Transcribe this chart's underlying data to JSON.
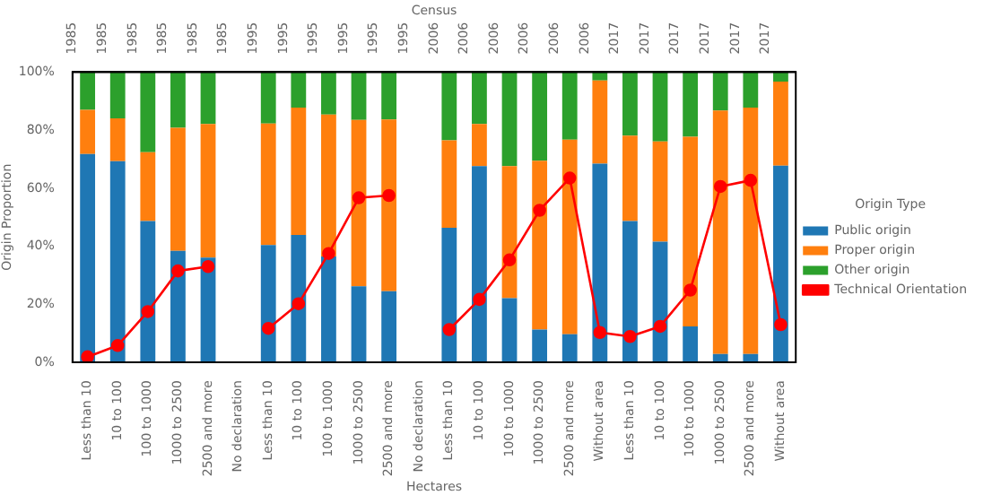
{
  "chart_data": {
    "type": "bar",
    "stacked": true,
    "xlabel": "Hectares",
    "ylabel": "Origin Proportion",
    "x2label": "Census",
    "legend_title": "Origin Type",
    "legend": "right",
    "grid": false,
    "categories": [
      "Less than 10",
      "10 to 100",
      "100 to 1000",
      "1000 to 2500",
      "2500 and more",
      "No declaration",
      "Less than 10",
      "10 to 100",
      "100 to 1000",
      "1000 to 2500",
      "2500 and more",
      "No declaration",
      "Less than 10",
      "10 to 100",
      "100 to 1000",
      "1000 to 2500",
      "2500 and more",
      "Without area",
      "Less than 10",
      "10 to 100",
      "100 to 1000",
      "1000 to 2500",
      "2500 and more",
      "Without area"
    ],
    "ylim": [
      0,
      100
    ],
    "yticks": [
      {
        "value": 0,
        "label": "0%"
      },
      {
        "value": 20,
        "label": "20%"
      },
      {
        "value": 40,
        "label": "40%"
      },
      {
        "value": 60,
        "label": "60%"
      },
      {
        "value": 80,
        "label": "80%"
      },
      {
        "value": 100,
        "label": "100%"
      }
    ],
    "annotations": [
      "1985",
      "1985",
      "1985",
      "1985",
      "1985",
      "1985",
      "1995",
      "1995",
      "1995",
      "1995",
      "1995",
      "1995",
      "2006",
      "2006",
      "2006",
      "2006",
      "2006",
      "2006",
      "2017",
      "2017",
      "2017",
      "2017",
      "2017",
      "2017"
    ],
    "series": [
      {
        "name": "Public origin",
        "color": "#1f77b4",
        "values": [
          71.8,
          69.3,
          48.7,
          38.4,
          36.1,
          null,
          40.4,
          43.9,
          36.5,
          26.2,
          24.5,
          null,
          46.4,
          67.6,
          22.1,
          11.3,
          9.7,
          68.5,
          48.7,
          41.6,
          12.4,
          2.9,
          2.9,
          67.8
        ]
      },
      {
        "name": "Proper origin",
        "color": "#ff7f0e",
        "values": [
          15.2,
          14.8,
          23.7,
          42.4,
          46.0,
          null,
          41.9,
          43.9,
          48.9,
          57.3,
          59.2,
          null,
          30.1,
          14.5,
          45.5,
          58.2,
          67.0,
          28.6,
          29.4,
          34.5,
          65.3,
          83.9,
          84.9,
          28.9
        ]
      },
      {
        "name": "Other origin",
        "color": "#2ca02c",
        "values": [
          13.0,
          15.9,
          27.6,
          19.2,
          17.9,
          null,
          17.7,
          12.2,
          14.6,
          16.5,
          16.3,
          null,
          23.5,
          17.9,
          32.4,
          30.5,
          23.3,
          2.9,
          21.9,
          23.9,
          22.3,
          13.2,
          12.2,
          3.3
        ]
      },
      {
        "name": "Technical Orientation",
        "type": "line",
        "marker": "circle",
        "color": "#ff0000",
        "values": [
          1.9,
          5.8,
          17.5,
          31.5,
          33.0,
          null,
          11.7,
          20.2,
          37.5,
          56.7,
          57.5,
          null,
          11.3,
          21.7,
          35.3,
          52.4,
          63.5,
          10.3,
          8.9,
          12.4,
          24.9,
          60.6,
          62.7,
          13.0
        ]
      }
    ]
  }
}
